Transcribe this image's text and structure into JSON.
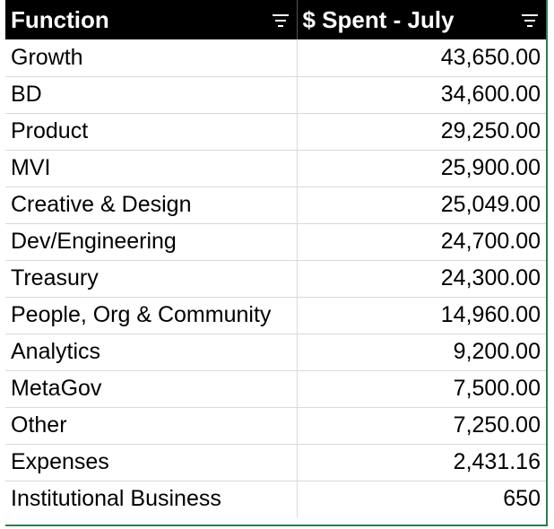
{
  "headers": {
    "function": "Function",
    "spent": "$ Spent - July"
  },
  "rows": [
    {
      "function": "Growth",
      "spent": "43,650.00"
    },
    {
      "function": "BD",
      "spent": "34,600.00"
    },
    {
      "function": "Product",
      "spent": "29,250.00"
    },
    {
      "function": "MVI",
      "spent": "25,900.00"
    },
    {
      "function": "Creative & Design",
      "spent": "25,049.00"
    },
    {
      "function": "Dev/Engineering",
      "spent": "24,700.00"
    },
    {
      "function": "Treasury",
      "spent": "24,300.00"
    },
    {
      "function": "People, Org & Community",
      "spent": "14,960.00"
    },
    {
      "function": "Analytics",
      "spent": "9,200.00"
    },
    {
      "function": "MetaGov",
      "spent": "7,500.00"
    },
    {
      "function": "Other",
      "spent": "7,250.00"
    },
    {
      "function": "Expenses",
      "spent": "2,431.16"
    },
    {
      "function": "Institutional Business",
      "spent": "650"
    }
  ],
  "colors": {
    "header_bg": "#000000",
    "header_text": "#ffffff",
    "grid": "#d9d9d9",
    "selection_border": "#2e7d4a"
  },
  "icons": {
    "filter": "filter-icon"
  }
}
